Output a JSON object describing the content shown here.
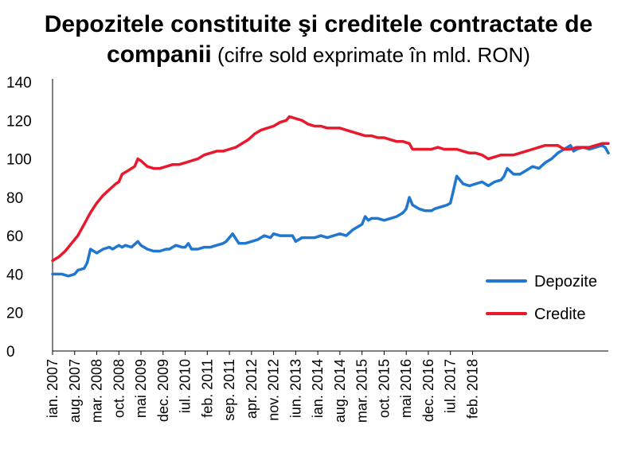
{
  "chart_data": {
    "type": "line",
    "title_line1": "Depozitele constituite şi creditele contractate de",
    "title_line2_bold": "companii",
    "title_line2_rest": " (cifre sold exprimate în mld. RON)",
    "ylim": [
      0,
      140
    ],
    "yticks": [
      0,
      20,
      40,
      60,
      80,
      100,
      120,
      140
    ],
    "x_start": "ian. 2007",
    "x_labels": [
      "ian. 2007",
      "aug. 2007",
      "mar. 2008",
      "oct. 2008",
      "mai 2009",
      "dec. 2009",
      "iul. 2010",
      "feb. 2011",
      "sep. 2011",
      "apr. 2012",
      "nov. 2012",
      "iun. 2013",
      "ian. 2014",
      "aug. 2014",
      "mar. 2015",
      "oct. 2015",
      "mai 2016",
      "dec. 2016",
      "iul. 2017",
      "feb. 2018"
    ],
    "legend_position": "right",
    "grid": false,
    "series": [
      {
        "name": "Depozite",
        "color": "#1f77d0",
        "values": [
          [
            0,
            40
          ],
          [
            3,
            40
          ],
          [
            5,
            39
          ],
          [
            7,
            40
          ],
          [
            8,
            42
          ],
          [
            10,
            43
          ],
          [
            11,
            46
          ],
          [
            12,
            53
          ],
          [
            14,
            51
          ],
          [
            16,
            53
          ],
          [
            18,
            54
          ],
          [
            19,
            53
          ],
          [
            20,
            54
          ],
          [
            21,
            55
          ],
          [
            22,
            54
          ],
          [
            23,
            55
          ],
          [
            25,
            54
          ],
          [
            27,
            57
          ],
          [
            28,
            55
          ],
          [
            30,
            53
          ],
          [
            32,
            52
          ],
          [
            34,
            52
          ],
          [
            36,
            53
          ],
          [
            37,
            53
          ],
          [
            39,
            55
          ],
          [
            41,
            54
          ],
          [
            42,
            54
          ],
          [
            43,
            56
          ],
          [
            44,
            53
          ],
          [
            46,
            53
          ],
          [
            48,
            54
          ],
          [
            50,
            54
          ],
          [
            52,
            55
          ],
          [
            54,
            56
          ],
          [
            55,
            57
          ],
          [
            57,
            61
          ],
          [
            59,
            56
          ],
          [
            61,
            56
          ],
          [
            63,
            57
          ],
          [
            65,
            58
          ],
          [
            67,
            60
          ],
          [
            69,
            59
          ],
          [
            70,
            61
          ],
          [
            72,
            60
          ],
          [
            74,
            60
          ],
          [
            76,
            60
          ],
          [
            77,
            57
          ],
          [
            79,
            59
          ],
          [
            81,
            59
          ],
          [
            83,
            59
          ],
          [
            85,
            60
          ],
          [
            87,
            59
          ],
          [
            89,
            60
          ],
          [
            91,
            61
          ],
          [
            93,
            60
          ],
          [
            95,
            63
          ],
          [
            97,
            65
          ],
          [
            98,
            66
          ],
          [
            99,
            70
          ],
          [
            100,
            68
          ],
          [
            101,
            69
          ],
          [
            103,
            69
          ],
          [
            105,
            68
          ],
          [
            107,
            69
          ],
          [
            109,
            70
          ],
          [
            111,
            72
          ],
          [
            112,
            74
          ],
          [
            113,
            80
          ],
          [
            114,
            76
          ],
          [
            116,
            74
          ],
          [
            118,
            73
          ],
          [
            120,
            73
          ],
          [
            121,
            74
          ],
          [
            123,
            75
          ],
          [
            125,
            76
          ],
          [
            126,
            77
          ],
          [
            127,
            84
          ],
          [
            128,
            91
          ],
          [
            130,
            87
          ],
          [
            132,
            86
          ],
          [
            134,
            87
          ],
          [
            136,
            88
          ],
          [
            138,
            86
          ],
          [
            140,
            88
          ],
          [
            142,
            89
          ],
          [
            143,
            91
          ],
          [
            144,
            95
          ],
          [
            146,
            92
          ],
          [
            148,
            92
          ],
          [
            150,
            94
          ],
          [
            152,
            96
          ],
          [
            154,
            95
          ],
          [
            156,
            98
          ],
          [
            158,
            100
          ],
          [
            160,
            103
          ],
          [
            162,
            105
          ],
          [
            164,
            107
          ],
          [
            165,
            104
          ],
          [
            166,
            105
          ],
          [
            168,
            106
          ],
          [
            170,
            105
          ],
          [
            172,
            106
          ],
          [
            174,
            107
          ],
          [
            175,
            106
          ],
          [
            176,
            103
          ]
        ]
      },
      {
        "name": "Credite",
        "color": "#e8192c",
        "values": [
          [
            0,
            47
          ],
          [
            2,
            49
          ],
          [
            4,
            52
          ],
          [
            6,
            56
          ],
          [
            8,
            60
          ],
          [
            10,
            66
          ],
          [
            12,
            72
          ],
          [
            14,
            77
          ],
          [
            16,
            81
          ],
          [
            18,
            84
          ],
          [
            20,
            87
          ],
          [
            21,
            88
          ],
          [
            22,
            92
          ],
          [
            24,
            94
          ],
          [
            26,
            96
          ],
          [
            27,
            100
          ],
          [
            28,
            99
          ],
          [
            30,
            96
          ],
          [
            32,
            95
          ],
          [
            34,
            95
          ],
          [
            36,
            96
          ],
          [
            38,
            97
          ],
          [
            40,
            97
          ],
          [
            42,
            98
          ],
          [
            44,
            99
          ],
          [
            46,
            100
          ],
          [
            48,
            102
          ],
          [
            50,
            103
          ],
          [
            52,
            104
          ],
          [
            54,
            104
          ],
          [
            56,
            105
          ],
          [
            58,
            106
          ],
          [
            60,
            108
          ],
          [
            62,
            110
          ],
          [
            64,
            113
          ],
          [
            66,
            115
          ],
          [
            68,
            116
          ],
          [
            70,
            117
          ],
          [
            72,
            119
          ],
          [
            74,
            120
          ],
          [
            75,
            122
          ],
          [
            77,
            121
          ],
          [
            79,
            120
          ],
          [
            81,
            118
          ],
          [
            83,
            117
          ],
          [
            85,
            117
          ],
          [
            87,
            116
          ],
          [
            89,
            116
          ],
          [
            91,
            116
          ],
          [
            93,
            115
          ],
          [
            95,
            114
          ],
          [
            97,
            113
          ],
          [
            99,
            112
          ],
          [
            101,
            112
          ],
          [
            103,
            111
          ],
          [
            105,
            111
          ],
          [
            107,
            110
          ],
          [
            109,
            109
          ],
          [
            111,
            109
          ],
          [
            113,
            108
          ],
          [
            114,
            105
          ],
          [
            116,
            105
          ],
          [
            118,
            105
          ],
          [
            120,
            105
          ],
          [
            122,
            106
          ],
          [
            124,
            105
          ],
          [
            126,
            105
          ],
          [
            128,
            105
          ],
          [
            130,
            104
          ],
          [
            132,
            103
          ],
          [
            134,
            103
          ],
          [
            136,
            102
          ],
          [
            138,
            100
          ],
          [
            140,
            101
          ],
          [
            142,
            102
          ],
          [
            144,
            102
          ],
          [
            146,
            102
          ],
          [
            148,
            103
          ],
          [
            150,
            104
          ],
          [
            152,
            105
          ],
          [
            154,
            106
          ],
          [
            156,
            107
          ],
          [
            158,
            107
          ],
          [
            160,
            107
          ],
          [
            162,
            105
          ],
          [
            164,
            105
          ],
          [
            166,
            106
          ],
          [
            168,
            106
          ],
          [
            170,
            106
          ],
          [
            172,
            107
          ],
          [
            174,
            108
          ],
          [
            176,
            108
          ]
        ]
      }
    ]
  }
}
